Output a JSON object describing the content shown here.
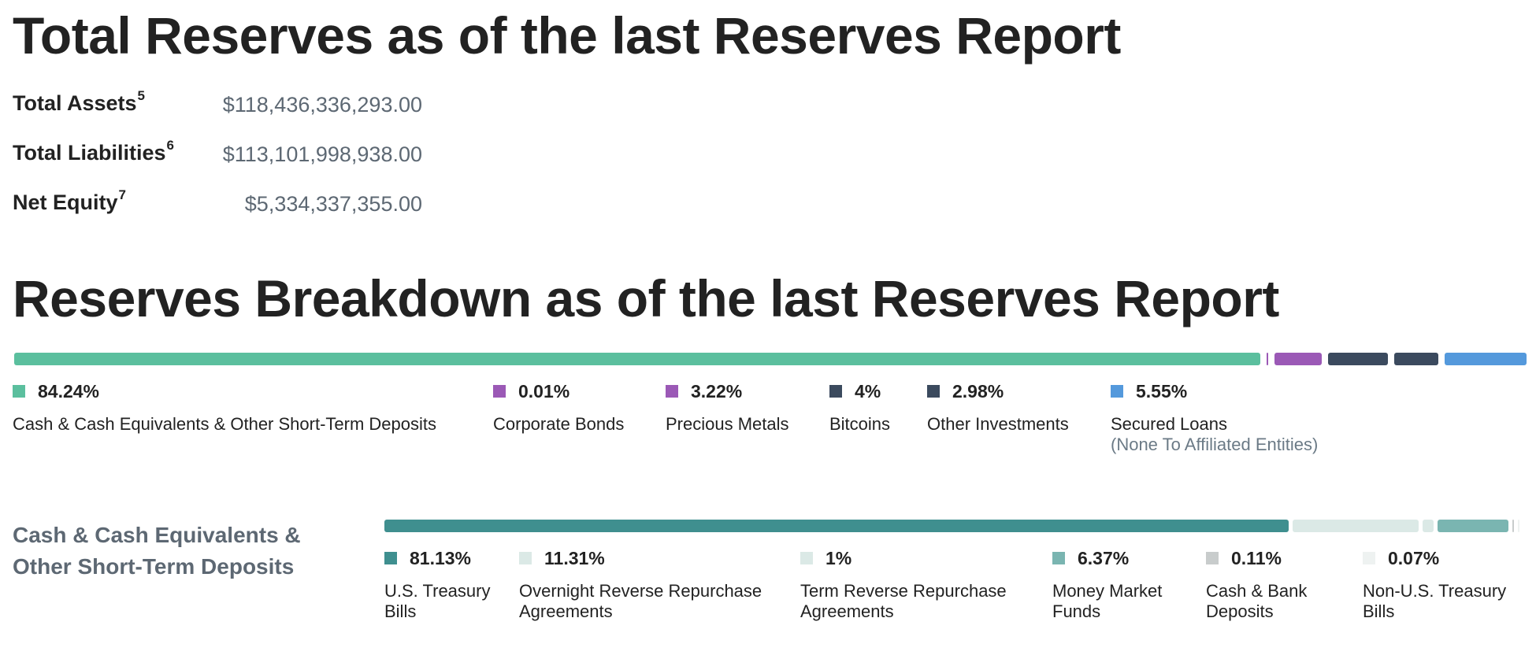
{
  "totals": {
    "title": "Total Reserves as of the last Reserves Report",
    "rows": [
      {
        "label": "Total Assets",
        "note": "5",
        "value": "$118,436,336,293.00"
      },
      {
        "label": "Total Liabilities",
        "note": "6",
        "value": "$113,101,998,938.00"
      },
      {
        "label": "Net Equity",
        "note": "7",
        "value": "$5,334,337,355.00"
      }
    ]
  },
  "breakdown": {
    "title": "Reserves Breakdown as of the last Reserves Report"
  },
  "cash_section": {
    "label": "Cash & Cash Equivalents & Other Short-Term Deposits"
  },
  "chart_data": [
    {
      "type": "bar",
      "stacked": true,
      "orientation": "horizontal",
      "unit": "%",
      "categories": [
        "Cash & Cash Equivalents & Other Short-Term Deposits",
        "Corporate Bonds",
        "Precious Metals",
        "Bitcoins",
        "Other Investments",
        "Secured Loans"
      ],
      "values": [
        84.24,
        0.01,
        3.22,
        4,
        2.98,
        5.55
      ],
      "value_labels": [
        "84.24%",
        "0.01%",
        "3.22%",
        "4%",
        "2.98%",
        "5.55%"
      ],
      "sublabels": [
        "",
        "",
        "",
        "",
        "",
        "(None To Affiliated Entities)"
      ],
      "colors": [
        "#5bbf9e",
        "#9b59b6",
        "#9b59b6",
        "#3b4a5e",
        "#3b4a5e",
        "#5499dc"
      ]
    },
    {
      "type": "bar",
      "stacked": true,
      "orientation": "horizontal",
      "unit": "%",
      "categories": [
        "U.S. Treasury Bills",
        "Overnight Reverse Repurchase Agreements",
        "Term Reverse Repurchase Agreements",
        "Money Market Funds",
        "Cash & Bank Deposits",
        "Non-U.S. Treasury Bills"
      ],
      "values": [
        81.13,
        11.31,
        1,
        6.37,
        0.11,
        0.07
      ],
      "value_labels": [
        "81.13%",
        "11.31%",
        "1%",
        "6.37%",
        "0.11%",
        "0.07%"
      ],
      "colors": [
        "#3f8f8f",
        "#dbe9e6",
        "#dbe9e6",
        "#7ab5b1",
        "#c8cccc",
        "#eef2f1"
      ]
    }
  ]
}
